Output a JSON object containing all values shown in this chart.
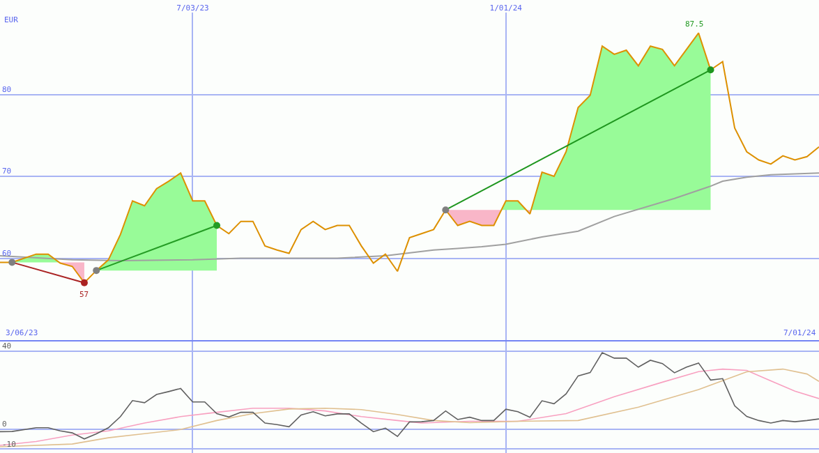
{
  "chart_data": [
    {
      "type": "line",
      "ylabel": "EUR",
      "grid": true,
      "xlim": [
        "2023-03-13",
        "2024-07-01"
      ],
      "xticks": [
        {
          "value": "2023-07-03",
          "label": "7/03/23"
        },
        {
          "value": "2024-01-01",
          "label": "1/01/24"
        }
      ],
      "ylim": [
        50,
        90
      ],
      "yticks": [
        60,
        70,
        80
      ],
      "x": [
        "2023-03-13",
        "2023-03-20",
        "2023-04-03",
        "2023-04-10",
        "2023-04-17",
        "2023-04-24",
        "2023-05-01",
        "2023-05-08",
        "2023-05-15",
        "2023-05-22",
        "2023-05-29",
        "2023-06-05",
        "2023-06-12",
        "2023-06-19",
        "2023-06-26",
        "2023-07-03",
        "2023-07-10",
        "2023-07-17",
        "2023-07-24",
        "2023-07-31",
        "2023-08-07",
        "2023-08-14",
        "2023-08-21",
        "2023-08-28",
        "2023-09-04",
        "2023-09-11",
        "2023-09-18",
        "2023-09-25",
        "2023-10-02",
        "2023-10-09",
        "2023-10-16",
        "2023-10-23",
        "2023-10-30",
        "2023-11-06",
        "2023-11-13",
        "2023-11-20",
        "2023-11-27",
        "2023-12-04",
        "2023-12-11",
        "2023-12-18",
        "2023-12-25",
        "2024-01-01",
        "2024-01-08",
        "2024-01-15",
        "2024-01-22",
        "2024-01-29",
        "2024-02-05",
        "2024-02-12",
        "2024-02-19",
        "2024-02-26",
        "2024-03-04",
        "2024-03-11",
        "2024-03-18",
        "2024-03-25",
        "2024-04-01",
        "2024-04-08",
        "2024-04-15",
        "2024-04-22",
        "2024-04-29",
        "2024-05-06",
        "2024-05-13",
        "2024-05-20",
        "2024-05-27",
        "2024-06-03",
        "2024-06-10",
        "2024-06-17",
        "2024-06-24",
        "2024-07-01"
      ],
      "series": [
        {
          "color": "#a0a0a0",
          "x": [
            "2023-03-13",
            "2023-04-24",
            "2023-05-22",
            "2023-07-03",
            "2023-07-31",
            "2023-08-28",
            "2023-09-25",
            "2023-10-23",
            "2023-11-20",
            "2023-12-04",
            "2023-12-18",
            "2024-01-01",
            "2024-01-22",
            "2024-02-12",
            "2024-03-04",
            "2024-04-08",
            "2024-04-29",
            "2024-05-06",
            "2024-05-20",
            "2024-06-03",
            "2024-07-01"
          ],
          "values": [
            60.3,
            59.8,
            59.7,
            59.8,
            60.0,
            60.0,
            60.0,
            60.3,
            61.0,
            61.2,
            61.4,
            61.7,
            62.6,
            63.3,
            65.1,
            67.3,
            68.8,
            69.4,
            69.9,
            70.2,
            70.4
          ]
        },
        {
          "color": "#dd9000",
          "values": [
            59.5,
            59.5,
            60.5,
            60.5,
            59.4,
            59.0,
            57.0,
            58.5,
            59.8,
            62.9,
            67.0,
            66.4,
            68.5,
            69.4,
            70.4,
            67.0,
            67.0,
            64.0,
            63.0,
            64.5,
            64.5,
            61.5,
            61.0,
            60.6,
            63.5,
            64.5,
            63.5,
            64.0,
            64.0,
            61.5,
            59.4,
            60.5,
            58.4,
            62.5,
            63.0,
            63.5,
            65.9,
            64.0,
            64.5,
            64.0,
            64.0,
            67.0,
            67.0,
            65.4,
            70.5,
            70.0,
            73.0,
            78.4,
            79.9,
            85.9,
            84.9,
            85.4,
            83.5,
            85.9,
            85.5,
            83.5,
            85.5,
            87.5,
            83.0,
            84.0,
            75.9,
            73.0,
            72.0,
            71.5,
            72.5,
            72.0,
            72.4,
            73.6
          ]
        },
        {
          "color": "#aa2222",
          "marker": "circle",
          "x": [
            "2023-03-20",
            "2023-05-01"
          ],
          "values": [
            59.5,
            57.0
          ],
          "colors": [
            "#808080",
            "#aa2222"
          ]
        },
        {
          "color": "#249c24",
          "marker": "circle",
          "x": [
            "2023-05-08",
            "2023-07-17"
          ],
          "values": [
            58.5,
            64.0
          ],
          "colors": [
            "#808080",
            "#249c24"
          ]
        },
        {
          "color": "#1e961e",
          "marker": "circle",
          "x": [
            "2023-11-27",
            "2024-04-29"
          ],
          "values": [
            65.9,
            83.0
          ],
          "colors": [
            "#808080",
            "#1e961e"
          ]
        }
      ],
      "annotations": [
        "3/06/23",
        "7/01/24",
        {
          "text": "57",
          "x": "2023-05-01",
          "y": 57
        },
        {
          "text": "87.5",
          "x": "2024-04-22",
          "y": 87.5
        }
      ]
    },
    {
      "type": "line",
      "grid": true,
      "tick_labels": "y",
      "xlim": [
        "2023-03-13",
        "2024-07-01"
      ],
      "xticks": [
        {
          "value": "2023-07-03",
          "label": null
        },
        {
          "value": "2024-01-01",
          "label": null
        }
      ],
      "ylim": [
        -12,
        45
      ],
      "yticks": [
        -10,
        0,
        40
      ],
      "x": [
        "2023-03-13",
        "2023-03-20",
        "2023-04-03",
        "2023-04-10",
        "2023-04-17",
        "2023-04-24",
        "2023-05-01",
        "2023-05-08",
        "2023-05-15",
        "2023-05-22",
        "2023-05-29",
        "2023-06-05",
        "2023-06-12",
        "2023-06-19",
        "2023-06-26",
        "2023-07-03",
        "2023-07-10",
        "2023-07-17",
        "2023-07-24",
        "2023-07-31",
        "2023-08-07",
        "2023-08-14",
        "2023-08-21",
        "2023-08-28",
        "2023-09-04",
        "2023-09-11",
        "2023-09-18",
        "2023-09-25",
        "2023-10-02",
        "2023-10-09",
        "2023-10-16",
        "2023-10-23",
        "2023-10-30",
        "2023-11-06",
        "2023-11-13",
        "2023-11-20",
        "2023-11-27",
        "2023-12-04",
        "2023-12-11",
        "2023-12-18",
        "2023-12-25",
        "2024-01-01",
        "2024-01-08",
        "2024-01-15",
        "2024-01-22",
        "2024-01-29",
        "2024-02-05",
        "2024-02-12",
        "2024-02-19",
        "2024-02-26",
        "2024-03-04",
        "2024-03-11",
        "2024-03-18",
        "2024-03-25",
        "2024-04-01",
        "2024-04-08",
        "2024-04-15",
        "2024-04-22",
        "2024-04-29",
        "2024-05-06",
        "2024-05-13",
        "2024-05-20",
        "2024-05-27",
        "2024-06-03",
        "2024-06-10",
        "2024-06-17",
        "2024-06-24",
        "2024-07-01"
      ],
      "series": [
        {
          "color": "#f8a0c0",
          "x": [
            "2023-03-13",
            "2023-04-03",
            "2023-04-24",
            "2023-05-15",
            "2023-06-05",
            "2023-06-26",
            "2023-07-17",
            "2023-08-07",
            "2023-08-28",
            "2023-09-18",
            "2023-10-09",
            "2023-10-30",
            "2023-11-13",
            "2023-12-11",
            "2024-01-08",
            "2024-02-05",
            "2024-03-04",
            "2024-04-01",
            "2024-04-22",
            "2024-05-06",
            "2024-05-20",
            "2024-06-03",
            "2024-06-17",
            "2024-07-01"
          ],
          "values": [
            -8.1,
            -6.1,
            -2.8,
            -0.7,
            3.3,
            6.6,
            8.8,
            10.9,
            10.9,
            9.5,
            6.6,
            4.6,
            3.3,
            4.2,
            4.2,
            8.1,
            16.8,
            24.2,
            29.6,
            30.9,
            30.2,
            24.9,
            19.6,
            15.8
          ]
        },
        {
          "color": "#e0c090",
          "x": [
            "2023-03-13",
            "2023-04-24",
            "2023-05-15",
            "2023-06-05",
            "2023-06-26",
            "2023-07-17",
            "2023-08-07",
            "2023-08-28",
            "2023-09-18",
            "2023-10-09",
            "2023-10-30",
            "2023-11-20",
            "2023-12-11",
            "2024-01-08",
            "2024-02-12",
            "2024-03-18",
            "2024-04-22",
            "2024-05-20",
            "2024-06-10",
            "2024-06-24",
            "2024-07-01"
          ],
          "values": [
            -8.8,
            -7.4,
            -4.2,
            -2.1,
            0,
            4.6,
            8.1,
            10.5,
            10.9,
            10.2,
            7.7,
            4.6,
            3.5,
            4.2,
            4.6,
            11.4,
            20.4,
            29.5,
            30.9,
            28.4,
            24.6
          ]
        },
        {
          "color": "#606060",
          "values": [
            -1.1,
            -1,
            0.9,
            0.9,
            -0.7,
            -1.7,
            -4.8,
            -2.2,
            0.9,
            6.6,
            14.8,
            13.7,
            17.9,
            19.4,
            21.0,
            14.1,
            14.1,
            8.1,
            6.4,
            8.8,
            8.8,
            3.3,
            2.5,
            1.4,
            7.4,
            9.1,
            7.0,
            8.0,
            8.0,
            3.3,
            -1.1,
            0.7,
            -3.5,
            3.9,
            4.0,
            4.6,
            9.5,
            5.1,
            6.3,
            4.6,
            4.6,
            10.4,
            9.1,
            6.3,
            14.7,
            13.2,
            18.2,
            27.4,
            29.1,
            39.3,
            36.5,
            36.5,
            31.9,
            35.4,
            33.7,
            29.0,
            31.9,
            34.0,
            25.3,
            26.0,
            12.1,
            6.7,
            4.6,
            3.3,
            4.6,
            4.0,
            4.6,
            5.4
          ]
        }
      ]
    }
  ]
}
